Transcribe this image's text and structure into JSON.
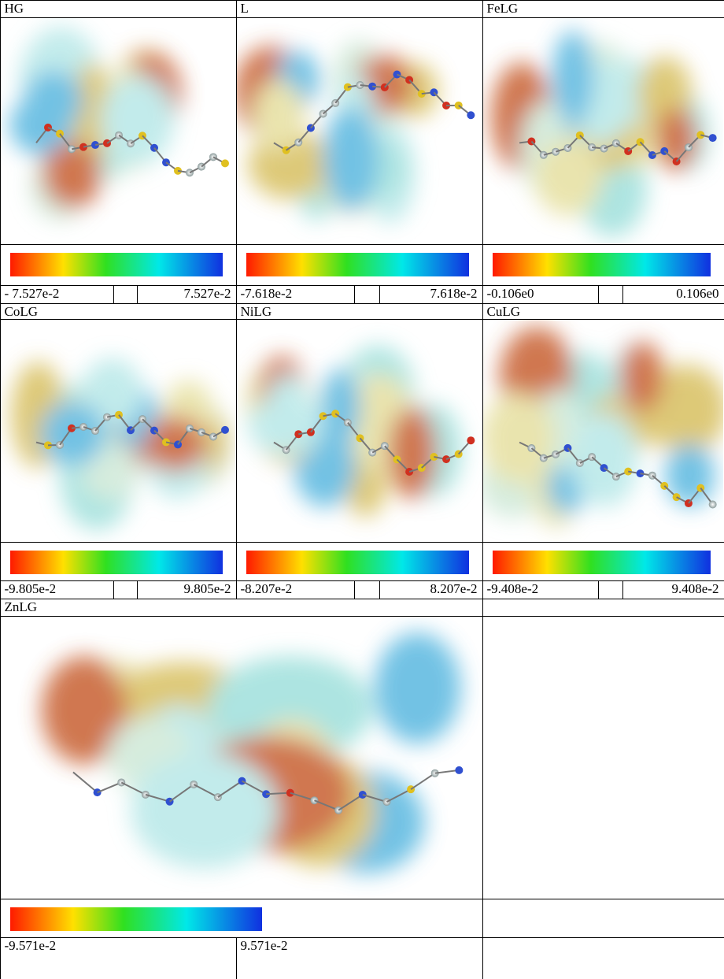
{
  "panels": [
    {
      "label": "HG",
      "min": "- 7.527e-2",
      "max": "7.527e-2"
    },
    {
      "label": "L",
      "min": "-7.618e-2",
      "max": "7.618e-2"
    },
    {
      "label": "FeLG",
      "min": "-0.106e0",
      "max": "0.106e0"
    },
    {
      "label": "CoLG",
      "min": "-9.805e-2",
      "max": "9.805e-2"
    },
    {
      "label": "NiLG",
      "min": "-8.207e-2",
      "max": "8.207e-2"
    },
    {
      "label": "CuLG",
      "min": "-9.408e-2",
      "max": "9.408e-2"
    },
    {
      "label": "ZnLG",
      "min": "-9.571e-2",
      "max": "9.571e-2"
    }
  ]
}
